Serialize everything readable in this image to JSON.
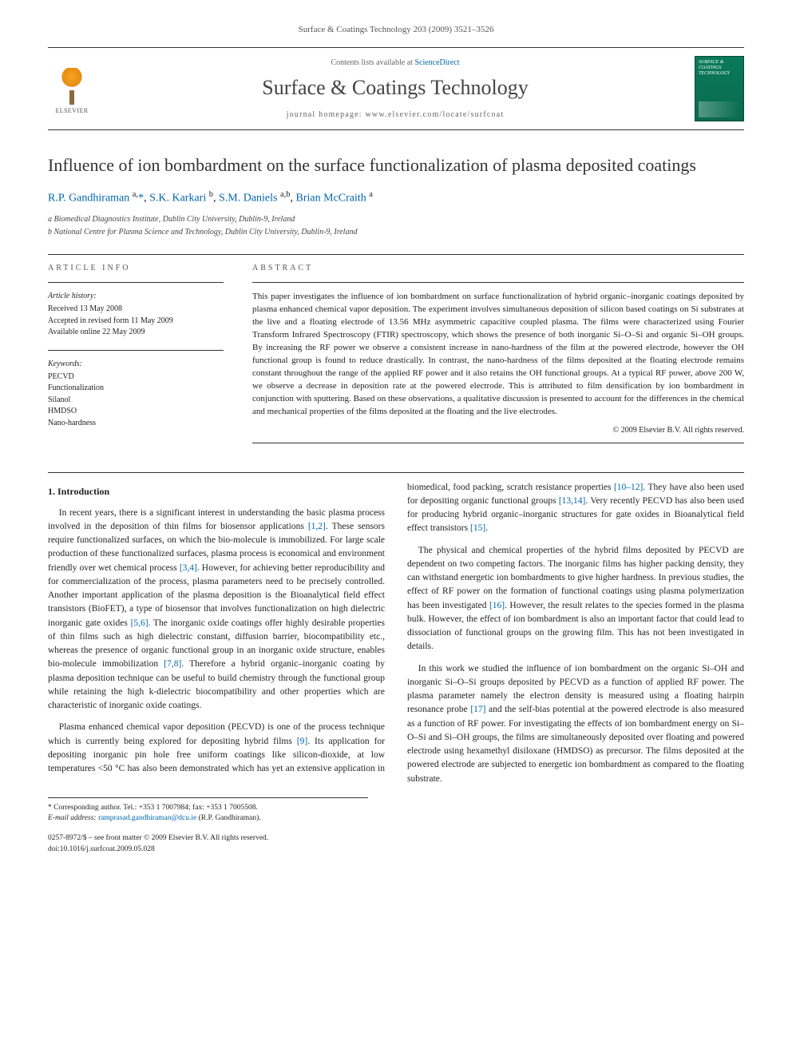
{
  "header": {
    "running_head": "Surface & Coatings Technology 203 (2009) 3521–3526",
    "contents_prefix": "Contents lists available at ",
    "contents_link": "ScienceDirect",
    "journal_title": "Surface & Coatings Technology",
    "homepage_prefix": "journal homepage: ",
    "homepage_url": "www.elsevier.com/locate/surfcoat",
    "publisher_name": "ELSEVIER",
    "cover_text": "SURFACE & COATINGS TECHNOLOGY"
  },
  "article": {
    "title": "Influence of ion bombardment on the surface functionalization of plasma deposited coatings",
    "authors_html": "R.P. Gandhiraman <sup>a,</sup>*, S.K. Karkari <sup>b</sup>, S.M. Daniels <sup>a,b</sup>, Brian McCraith <sup>a</sup>",
    "affiliations": [
      "a  Biomedical Diagnostics Institute, Dublin City University, Dublin-9, Ireland",
      "b  National Centre for Plasma Science and Technology, Dublin City University, Dublin-9, Ireland"
    ]
  },
  "info": {
    "label": "ARTICLE INFO",
    "history_head": "Article history:",
    "history_lines": [
      "Received 13 May 2008",
      "Accepted in revised form 11 May 2009",
      "Available online 22 May 2009"
    ],
    "kw_head": "Keywords:",
    "keywords": [
      "PECVD",
      "Functionalization",
      "Silanol",
      "HMDSO",
      "Nano-hardness"
    ]
  },
  "abstract": {
    "label": "ABSTRACT",
    "text": "This paper investigates the influence of ion bombardment on surface functionalization of hybrid organic–inorganic coatings deposited by plasma enhanced chemical vapor deposition. The experiment involves simultaneous deposition of silicon based coatings on Si substrates at the live and a floating electrode of 13.56 MHz asymmetric capacitive coupled plasma. The films were characterized using Fourier Transform Infrared Spectroscopy (FTIR) spectroscopy, which shows the presence of both inorganic Si–O–Si and organic Si–OH groups. By increasing the RF power we observe a consistent increase in nano-hardness of the film at the powered electrode, however the OH functional group is found to reduce drastically. In contrast, the nano-hardness of the films deposited at the floating electrode remains constant throughout the range of the applied RF power and it also retains the OH functional groups. At a typical RF power, above 200 W, we observe a decrease in deposition rate at the powered electrode. This is attributed to film densification by ion bombardment in conjunction with sputtering. Based on these observations, a qualitative discussion is presented to account for the differences in the chemical and mechanical properties of the films deposited at the floating and the live electrodes.",
    "copyright": "© 2009 Elsevier B.V. All rights reserved."
  },
  "body": {
    "section_heading": "1. Introduction",
    "p1": "In recent years, there is a significant interest in understanding the basic plasma process involved in the deposition of thin films for biosensor applications [1,2]. These sensors require functionalized surfaces, on which the bio-molecule is immobilized. For large scale production of these functionalized surfaces, plasma process is economical and environment friendly over wet chemical process [3,4]. However, for achieving better reproducibility and for commercialization of the process, plasma parameters need to be precisely controlled. Another important application of the plasma deposition is the Bioanalytical field effect transistors (BioFET), a type of biosensor that involves functionalization on high dielectric inorganic gate oxides [5,6]. The inorganic oxide coatings offer highly desirable properties of thin films such as high dielectric constant, diffusion barrier, biocompatibility etc., whereas the presence of organic functional group in an inorganic oxide structure, enables bio-molecule immobilization [7,8]. Therefore a hybrid organic–inorganic coating by plasma deposition technique can be useful to build chemistry through the functional group while retaining the high k-dielectric biocompatibility and other properties which are characteristic of inorganic oxide coatings.",
    "p2": "Plasma enhanced chemical vapor deposition (PECVD) is one of the process technique which is currently being explored for depositing hybrid films [9]. Its application for depositing inorganic pin hole free uniform coatings like silicon-dioxide, at low temperatures <50 °C has also been demonstrated which has yet an extensive application in biomedical, food packing, scratch resistance properties [10–12]. They have also been used for depositing organic functional groups [13,14]. Very recently PECVD has also been used for producing hybrid organic–inorganic structures for gate oxides in Bioanalytical field effect transistors [15].",
    "p3": "The physical and chemical properties of the hybrid films deposited by PECVD are dependent on two competing factors. The inorganic films has higher packing density, they can withstand energetic ion bombardments to give higher hardness. In previous studies, the effect of RF power on the formation of functional coatings using plasma polymerization has been investigated [16]. However, the result relates to the species formed in the plasma bulk. However, the effect of ion bombardment is also an important factor that could lead to dissociation of functional groups on the growing film. This has not been investigated in details.",
    "p4": "In this work we studied the influence of ion bombardment on the organic Si–OH and inorganic Si–O–Si groups deposited by PECVD as a function of applied RF power. The plasma parameter namely the electron density is measured using a floating hairpin resonance probe [17] and the self-bias potential at the powered electrode is also measured as a function of RF power. For investigating the effects of ion bombardment energy on Si–O–Si and Si–OH groups, the films are simultaneously deposited over floating and powered electrode using hexamethyl disiloxane (HMDSO) as precursor. The films deposited at the powered electrode are subjected to energetic ion bombardment as compared to the floating substrate."
  },
  "footnotes": {
    "corr": "* Corresponding author. Tel.: +353 1 7007984; fax: +353 1 7005508.",
    "email_label": "E-mail address:",
    "email": "ramprasad.gandhiraman@dcu.ie",
    "email_who": "(R.P. Gandhiraman)."
  },
  "footer": {
    "line1": "0257-8972/$ – see front matter © 2009 Elsevier B.V. All rights reserved.",
    "line2": "doi:10.1016/j.surfcoat.2009.05.028"
  },
  "refs": {
    "r1_2": "[1,2]",
    "r3_4": "[3,4]",
    "r5_6": "[5,6]",
    "r7_8": "[7,8]",
    "r9": "[9]",
    "r10_12": "[10–12]",
    "r13_14": "[13,14]",
    "r15": "[15]",
    "r16": "[16]",
    "r17": "[17]"
  }
}
